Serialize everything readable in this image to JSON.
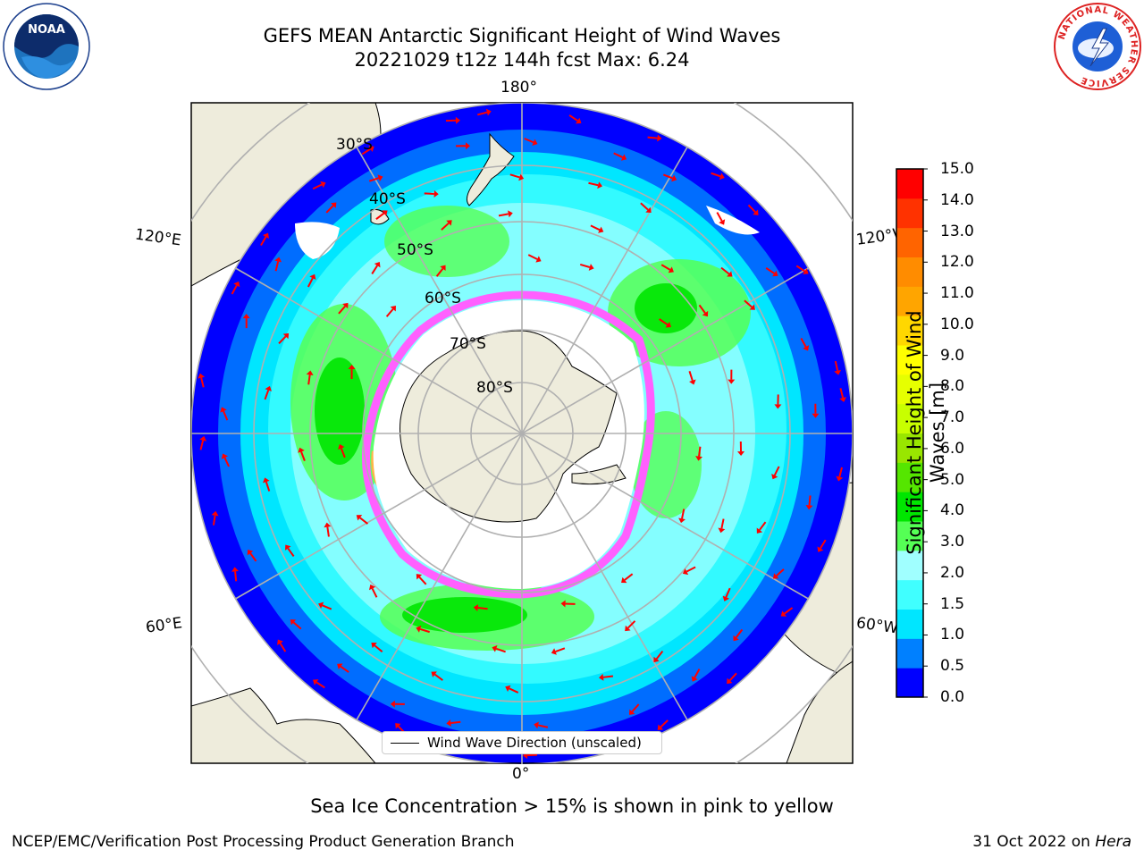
{
  "title": {
    "line1": "GEFS MEAN Antarctic Significant Height of Wind Waves",
    "line2": "20221029 t12z 144h fcst   Max: 6.24"
  },
  "logos": {
    "left": "NOAA",
    "right_ring": "NATIONAL WEATHER SERVICE"
  },
  "map": {
    "projection": "south-polar-stereographic",
    "lon_labels": {
      "top": "180°",
      "bottom": "0°",
      "left_upper": "120°E",
      "left_lower": "60°E",
      "right_upper": "120°W",
      "right_lower": "60°W"
    },
    "lat_labels": [
      "30°S",
      "40°S",
      "50°S",
      "60°S",
      "70°S",
      "80°S"
    ],
    "legend": "Wind Wave Direction (unscaled)"
  },
  "colorbar": {
    "label": "Significant Height of Wind Waves [m]",
    "ticks": [
      "15.0",
      "14.0",
      "13.0",
      "12.0",
      "11.0",
      "10.0",
      "9.0",
      "8.0",
      "7.0",
      "6.0",
      "5.0",
      "4.0",
      "3.0",
      "2.0",
      "1.5",
      "1.0",
      "0.5",
      "0.0"
    ],
    "colors": [
      "#0000ff",
      "#0080ff",
      "#00e6ff",
      "#40ffff",
      "#a0ffff",
      "#55ff55",
      "#00e600",
      "#55e600",
      "#99e600",
      "#c8ff00",
      "#e6ff00",
      "#ffff00",
      "#ffd700",
      "#ffa500",
      "#ff8c00",
      "#ff6400",
      "#ff3200",
      "#ff0000"
    ]
  },
  "colors": {
    "land": "#eeecdc",
    "ice_pink": "#ff60ff",
    "ice_yellow": "#ffb347",
    "arrow": "#ff0000",
    "grid": "#b0b0b0"
  },
  "note": "Sea Ice Concentration > 15% is shown in pink to yellow",
  "footer": {
    "left": "NCEP/EMC/Verification Post Processing Product Generation Branch",
    "right_date": "31 Oct 2022 on",
    "right_host": "Hera"
  }
}
